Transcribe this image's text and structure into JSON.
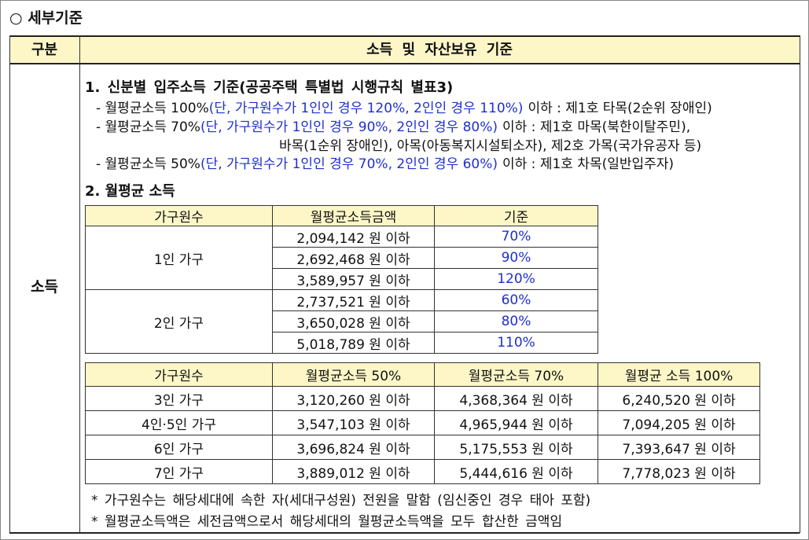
{
  "title": "○ 세부기준",
  "header": {
    "category": "구분",
    "criteria": "소득 및 자산보유 기준"
  },
  "row_label": "소득",
  "section1": {
    "heading": "1. 신분별 입주소득 기준(공공주택 특별법 시행규칙 별표3)",
    "items": [
      {
        "label": "- 월평균소득 100%",
        "condition": "(단, 가구원수가 1인인 경우 120%, 2인인 경우 110%)",
        "rest": "이하 : 제1호 타목(2순위 장애인)"
      },
      {
        "label": "- 월평균소득 70%",
        "condition": "(단, 가구원수가 1인인 경우 90%, 2인인 경우 80%)",
        "rest": "이하 : 제1호 마목(북한이탈주민),",
        "continuation": "바목(1순위 장애인), 아목(아동복지시설퇴소자), 제2호 가목(국가유공자 등)"
      },
      {
        "label": "- 월평균소득 50%",
        "condition": "(단, 가구원수가 1인인 경우 70%, 2인인 경우 60%)",
        "rest": "이하 : 제1호 차목(일반입주자)"
      }
    ]
  },
  "section2": {
    "heading": "2. 월평균 소득",
    "table1": {
      "headers": [
        "가구원수",
        "월평균소득금액",
        "기준"
      ],
      "groups": [
        {
          "label": "1인 가구",
          "rows": [
            [
              "2,094,142 원 이하",
              "70%"
            ],
            [
              "2,692,468 원 이하",
              "90%"
            ],
            [
              "3,589,957 원 이하",
              "120%"
            ]
          ]
        },
        {
          "label": "2인 가구",
          "rows": [
            [
              "2,737,521 원 이하",
              "60%"
            ],
            [
              "3,650,028 원 이하",
              "80%"
            ],
            [
              "5,018,789 원 이하",
              "110%"
            ]
          ]
        }
      ]
    },
    "table2": {
      "headers": [
        "가구원수",
        "월평균소득 50%",
        "월평균소득 70%",
        "월평균 소득 100%"
      ],
      "rows": [
        [
          "3인 가구",
          "3,120,260 원 이하",
          "4,368,364 원 이하",
          "6,240,520 원 이하"
        ],
        [
          "4인·5인 가구",
          "3,547,103 원 이하",
          "4,965,944 원 이하",
          "7,094,205 원 이하"
        ],
        [
          "6인 가구",
          "3,696,824 원 이하",
          "5,175,553 원 이하",
          "7,393,647 원 이하"
        ],
        [
          "7인 가구",
          "3,889,012 원 이하",
          "5,444,616 원 이하",
          "7,778,023 원 이하"
        ]
      ]
    }
  },
  "notes": [
    "* 가구원수는 해당세대에 속한 자(세대구성원) 전원을 말함 (임신중인 경우 태아 포함)",
    "* 월평균소득액은 세전금액으로서 해당세대의 월평균소득액을 모두 합산한 금액임"
  ]
}
